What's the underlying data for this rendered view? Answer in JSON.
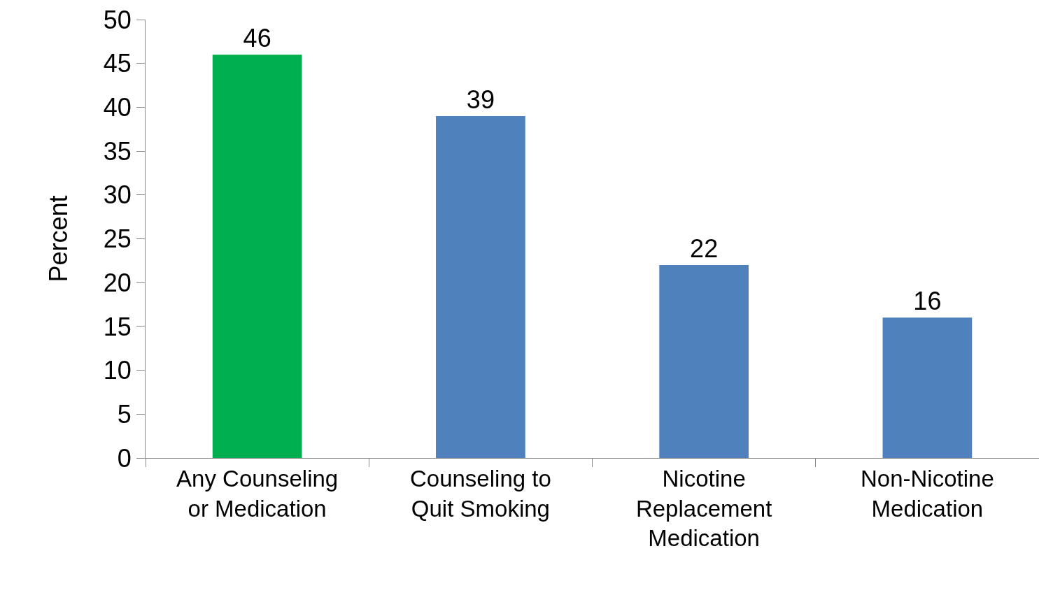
{
  "chart_data": {
    "type": "bar",
    "ylabel": "Percent",
    "categories": [
      "Any Counseling or Medication",
      "Counseling to Quit Smoking",
      "Nicotine Replacement Medication",
      "Non-Nicotine Medication"
    ],
    "values": [
      46,
      39,
      22,
      16
    ],
    "colors": [
      "#00b050",
      "#4f81bd",
      "#4f81bd",
      "#4f81bd"
    ],
    "ylim": [
      0,
      50
    ],
    "yticks": [
      0,
      5,
      10,
      15,
      20,
      25,
      30,
      35,
      40,
      45,
      50
    ],
    "data_labels": true
  }
}
